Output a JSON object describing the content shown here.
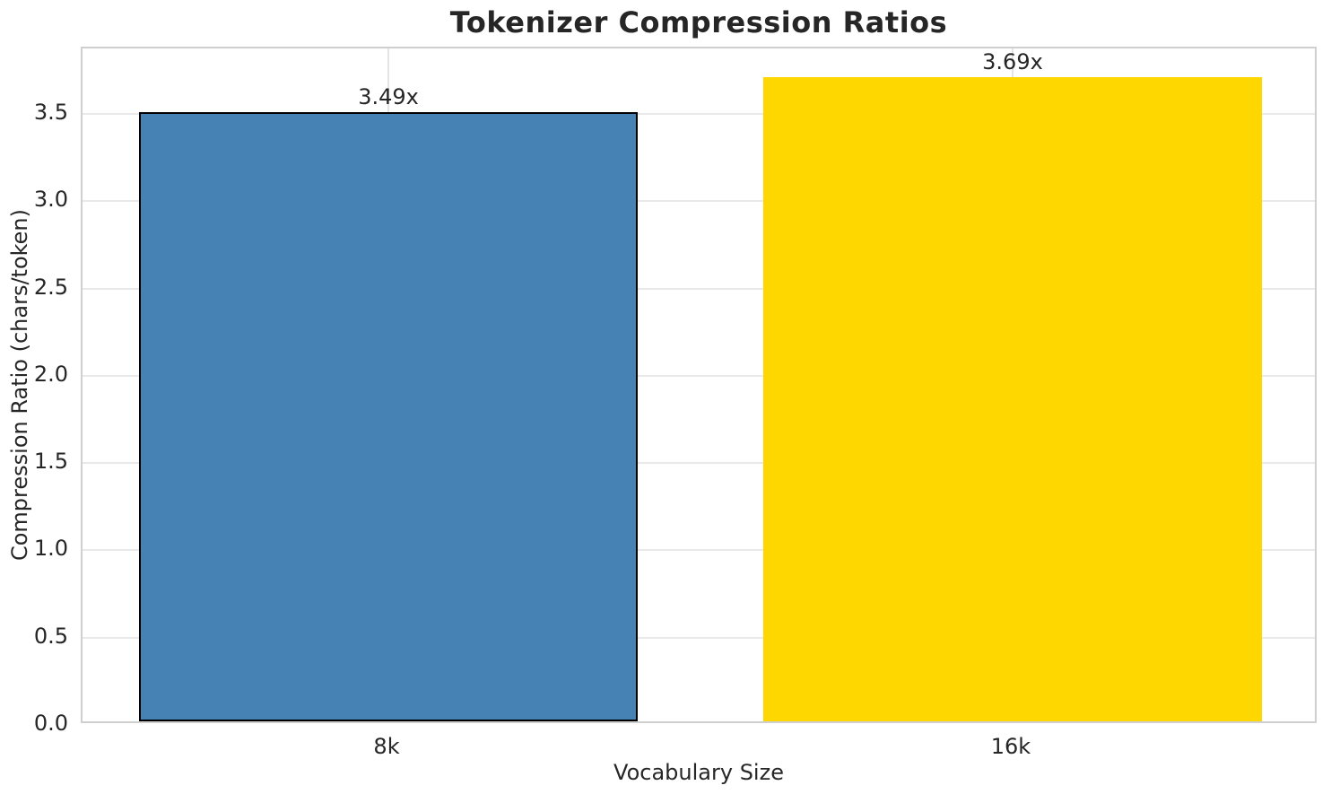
{
  "chart_data": {
    "type": "bar",
    "title": "Tokenizer Compression Ratios",
    "xlabel": "Vocabulary Size",
    "ylabel": "Compression Ratio (chars/token)",
    "categories": [
      "8k",
      "16k"
    ],
    "values": [
      3.49,
      3.69
    ],
    "bar_labels": [
      "3.49x",
      "3.69x"
    ],
    "bar_colors": [
      "#4682b4",
      "#ffd700"
    ],
    "bar_edge_colors": [
      "#000000",
      null
    ],
    "bar_width_units": 0.8,
    "ytick_labels": [
      "0.0",
      "0.5",
      "1.0",
      "1.5",
      "2.0",
      "2.5",
      "3.0",
      "3.5"
    ],
    "yticks": [
      0,
      0.5,
      1,
      1.5,
      2,
      2.5,
      3,
      3.5
    ],
    "ylim": [
      0,
      3.875
    ],
    "xlim": [
      -0.49,
      1.49
    ],
    "grid": true,
    "grid_axis": "both",
    "legend_position": null,
    "styles": {
      "grid_color": "#e9e9e9",
      "spine_color": "#cfcfcf",
      "text_color": "#262626",
      "figure_background": "#ffffff",
      "plot_background": "#ffffff"
    }
  }
}
